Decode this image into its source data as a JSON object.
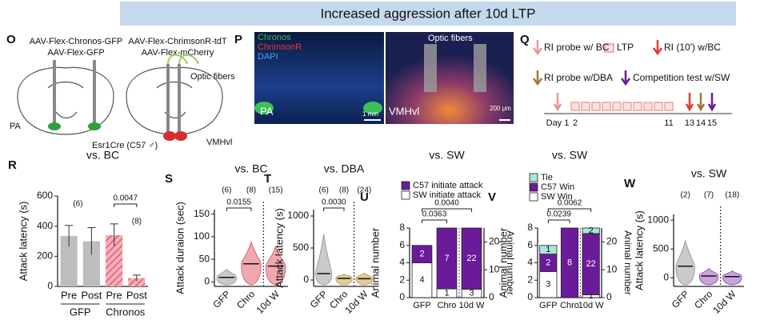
{
  "title": "Increased aggression after 10d LTP",
  "panels": {
    "O": {
      "label": "O",
      "texts": [
        "AAV-Flex-Chronos-GFP",
        "AAV-Flex-GFP",
        "AAV-Flex-ChrimsonR-tdT",
        "AAV-Flex-mCherry",
        "Optic fibers",
        "PA",
        "VMHvl",
        "Esr1Cre (C57 ♂)"
      ]
    },
    "P": {
      "label": "P",
      "legend": [
        "Chronos",
        "ChrimsonR",
        "DAPI"
      ],
      "texts": [
        "PA",
        "VMHvl",
        "Optic fibers",
        "1 mm",
        "200 μm"
      ]
    },
    "Q": {
      "label": "Q",
      "legend": [
        "RI probe w/ BC",
        "LTP",
        "RI (10') w/BC",
        "RI probe w/DBA",
        "Competition test w/SW"
      ],
      "days": [
        "Day 1",
        "2",
        "11",
        "13",
        "14",
        "15"
      ]
    }
  },
  "chart_data": [
    {
      "type": "bar",
      "panel": "R",
      "title": "vs. BC",
      "ylabel": "Attack latency (s)",
      "ylim": [
        0,
        600
      ],
      "yticks": [
        0,
        200,
        400,
        600
      ],
      "series": [
        {
          "name": "GFP",
          "color": "#bdbdbd",
          "categories": [
            "Pre",
            "Post"
          ],
          "values": [
            335,
            300
          ],
          "errors": [
            70,
            90
          ]
        },
        {
          "name": "Chronos",
          "color": "#e06070",
          "hatch": true,
          "categories": [
            "Pre",
            "Post"
          ],
          "values": [
            340,
            55
          ],
          "errors": [
            75,
            20
          ]
        }
      ],
      "n_labels": [
        "(6)",
        "(8)"
      ],
      "p_values": [
        "0.0047"
      ]
    },
    {
      "type": "violin",
      "panel": "S",
      "title": "vs. BC",
      "ylabel": "Attack duraion (sec)",
      "ylim": [
        -10,
        160
      ],
      "yticks": [
        0,
        50,
        100,
        150
      ],
      "categories": [
        "GFP",
        "Chro",
        "10d W"
      ],
      "medians": [
        10,
        40,
        35
      ],
      "maxima": [
        28,
        88,
        78
      ],
      "colors": [
        "#9e9e9e",
        "#e06070",
        "#e06070"
      ],
      "n_labels": [
        "(6)",
        "(8)",
        "(15)"
      ],
      "p_values": [
        "0.0155"
      ]
    },
    {
      "type": "violin",
      "panel": "T",
      "title": "vs. DBA",
      "ylabel": "Attack latency (s)",
      "ylim": [
        -100,
        1100
      ],
      "yticks": [
        0,
        500,
        1000
      ],
      "categories": [
        "GFP",
        "Chro",
        "10d W"
      ],
      "medians": [
        100,
        25,
        20
      ],
      "maxima": [
        720,
        90,
        110
      ],
      "colors": [
        "#9e9e9e",
        "#c8a050",
        "#c8a050"
      ],
      "n_labels": [
        "(6)",
        "(8)",
        "(24)"
      ],
      "p_values": [
        "0.0030"
      ]
    },
    {
      "type": "stacked",
      "panel": "U",
      "title": "vs. SW",
      "ylabel": "Animal number",
      "y2label": "Animal number",
      "ylim": [
        0,
        8
      ],
      "yticks": [
        0,
        2,
        4,
        6,
        8
      ],
      "y2lim": [
        0,
        25
      ],
      "y2ticks": [
        0,
        10,
        20
      ],
      "categories": [
        "GFP",
        "Chro",
        "10d W"
      ],
      "category_axis": [
        "y",
        "y",
        "y2"
      ],
      "series": [
        {
          "name": "C57 initiate attack",
          "color": "#6a1b9a",
          "values": [
            2,
            7,
            22
          ]
        },
        {
          "name": "SW initiate attack",
          "color": "#ffffff",
          "values": [
            4,
            1,
            3
          ]
        }
      ],
      "p_values": [
        "0.0363",
        "0.0040"
      ]
    },
    {
      "type": "stacked",
      "panel": "V",
      "title": "vs. SW",
      "ylabel": "Animal number",
      "y2label": "Animal number",
      "ylim": [
        0,
        8
      ],
      "yticks": [
        0,
        2,
        4,
        6,
        8
      ],
      "y2lim": [
        0,
        25
      ],
      "y2ticks": [
        0,
        10,
        20
      ],
      "categories": [
        "GFP",
        "Chro",
        "10d W"
      ],
      "category_axis": [
        "y",
        "y",
        "y2"
      ],
      "series": [
        {
          "name": "Tie",
          "color": "#a8e6d8",
          "values": [
            1,
            0,
            2
          ]
        },
        {
          "name": "C57 Win",
          "color": "#6a1b9a",
          "values": [
            2,
            8,
            22
          ]
        },
        {
          "name": "SW Win",
          "color": "#ffffff",
          "values": [
            3,
            0,
            1
          ]
        }
      ],
      "p_values": [
        "0.0239",
        "0.0062"
      ]
    },
    {
      "type": "violin",
      "panel": "W",
      "title": "vs. SW",
      "ylabel": "Attack latency (s)",
      "ylim": [
        -150,
        1100
      ],
      "yticks": [
        0,
        500,
        1000
      ],
      "categories": [
        "GFP",
        "Chro",
        "10d W"
      ],
      "medians": [
        200,
        30,
        20
      ],
      "maxima": [
        650,
        160,
        120
      ],
      "colors": [
        "#9e9e9e",
        "#9b59b6",
        "#9b59b6"
      ],
      "n_labels": [
        "(2)",
        "(7)",
        "(18)"
      ]
    }
  ]
}
